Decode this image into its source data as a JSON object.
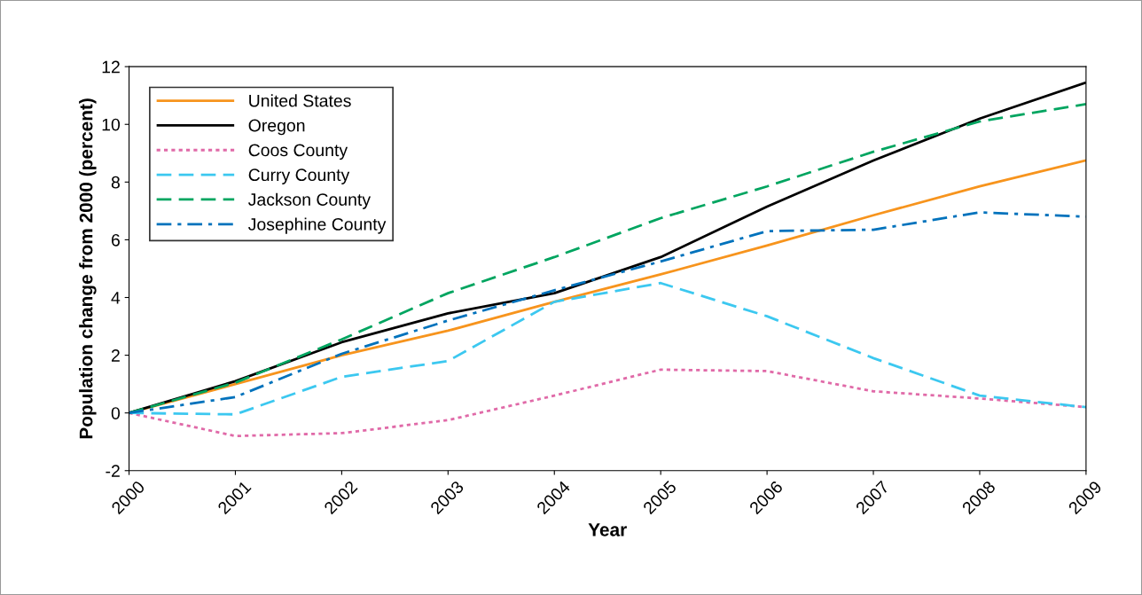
{
  "chart_data": {
    "type": "line",
    "xlabel": "Year",
    "ylabel": "Population change from 2000 (percent)",
    "categories": [
      "2000",
      "2001",
      "2002",
      "2003",
      "2004",
      "2005",
      "2006",
      "2007",
      "2008",
      "2009"
    ],
    "ylim": [
      -2,
      12
    ],
    "yticks": [
      -2,
      0,
      2,
      4,
      6,
      8,
      10,
      12
    ],
    "grid": false,
    "legend": "top left",
    "marker": "none",
    "series": [
      {
        "name": "United States",
        "color": "#f7941d",
        "line_style": "solid",
        "values": [
          0,
          1.0,
          2.0,
          2.85,
          3.85,
          4.8,
          5.8,
          6.85,
          7.85,
          8.75
        ]
      },
      {
        "name": "Oregon",
        "color": "#000000",
        "line_style": "solid",
        "values": [
          0,
          1.1,
          2.45,
          3.45,
          4.15,
          5.4,
          7.15,
          8.75,
          10.2,
          11.45
        ]
      },
      {
        "name": "Coos County",
        "color": "#e06aa8",
        "line_style": "dotted",
        "values": [
          0,
          -0.8,
          -0.7,
          -0.25,
          0.6,
          1.5,
          1.45,
          0.75,
          0.5,
          0.2
        ]
      },
      {
        "name": "Curry County",
        "color": "#3cc8f0",
        "line_style": "dashed",
        "values": [
          0,
          -0.05,
          1.25,
          1.8,
          3.85,
          4.5,
          3.35,
          1.9,
          0.6,
          0.2
        ]
      },
      {
        "name": "Jackson County",
        "color": "#00a560",
        "line_style": "dashed",
        "values": [
          0,
          1.05,
          2.55,
          4.15,
          5.4,
          6.75,
          7.85,
          9.05,
          10.1,
          10.7
        ]
      },
      {
        "name": "Josephine County",
        "color": "#0072bc",
        "line_style": "dashdot",
        "values": [
          0,
          0.55,
          2.05,
          3.2,
          4.25,
          5.25,
          6.3,
          6.35,
          6.95,
          6.8
        ]
      }
    ]
  }
}
